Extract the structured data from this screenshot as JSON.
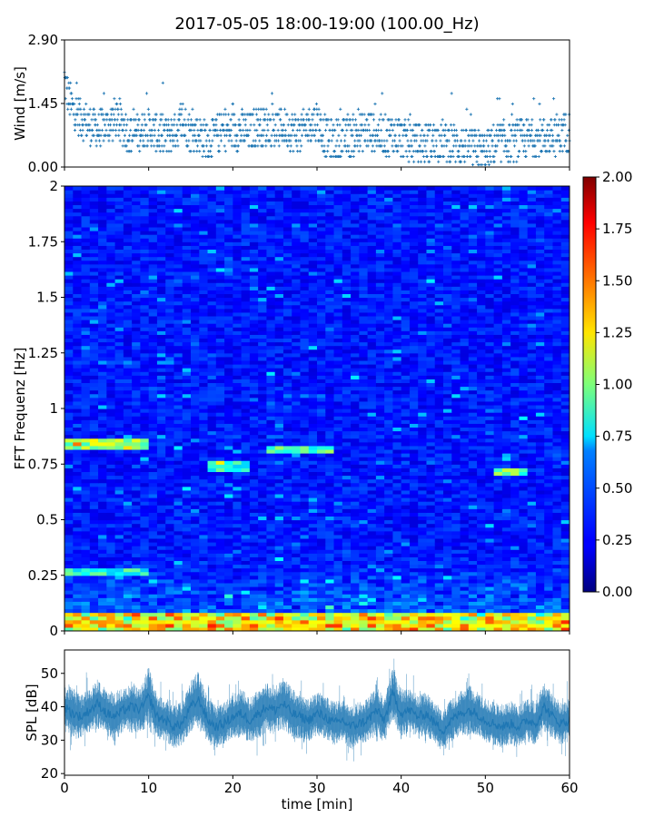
{
  "figure": {
    "title": "2017-05-05 18:00-19:00 (100.00_Hz)"
  },
  "chart_data": [
    {
      "type": "scatter",
      "panel": "wind",
      "ylabel": "Wind [m/s]",
      "xlabel": "",
      "xlim": [
        0,
        60
      ],
      "ylim": [
        0,
        2.9
      ],
      "yticks": [
        "0.00",
        "1.45",
        "2.90"
      ],
      "color": "#1f77b4",
      "marker": "+",
      "trend": {
        "x": [
          0,
          0.5,
          1,
          2,
          3,
          4,
          5,
          6,
          7,
          8,
          9,
          10,
          11,
          12,
          13,
          14,
          15,
          16,
          17,
          18,
          19,
          20,
          21,
          22,
          23,
          24,
          25,
          26,
          27,
          28,
          29,
          30,
          31,
          32,
          33,
          34,
          35,
          36,
          37,
          38,
          39,
          40,
          41,
          42,
          43,
          44,
          45,
          46,
          47,
          48,
          49,
          50,
          51,
          52,
          53,
          54,
          55,
          56,
          57,
          58,
          59,
          60
        ],
        "y": [
          2.0,
          1.6,
          1.3,
          1.1,
          0.95,
          0.85,
          0.95,
          1.1,
          0.9,
          0.75,
          0.85,
          0.9,
          0.75,
          0.7,
          0.8,
          1.0,
          0.8,
          0.75,
          0.6,
          0.75,
          0.85,
          0.8,
          0.85,
          0.8,
          0.95,
          0.9,
          0.85,
          0.9,
          0.85,
          0.75,
          1.0,
          1.05,
          0.7,
          0.6,
          0.65,
          0.7,
          0.75,
          0.85,
          0.8,
          0.7,
          0.75,
          0.65,
          0.6,
          0.55,
          0.55,
          0.6,
          0.6,
          0.55,
          0.5,
          0.45,
          0.4,
          0.35,
          0.5,
          0.6,
          0.55,
          0.6,
          0.65,
          0.65,
          0.7,
          0.7,
          0.75,
          0.8
        ]
      }
    },
    {
      "type": "heatmap",
      "panel": "spectrogram",
      "ylabel": "FFT Frequenz [Hz]",
      "xlabel": "",
      "xlim": [
        0,
        60
      ],
      "ylim": [
        0,
        2
      ],
      "yticks": [
        "0",
        "0.25",
        "0.5",
        "0.75",
        "1",
        "1.25",
        "1.5",
        "1.75",
        "2"
      ],
      "colorbar": {
        "min": 0,
        "max": 2,
        "ticks": [
          "0.00",
          "0.25",
          "0.50",
          "0.75",
          "1.00",
          "1.25",
          "1.50",
          "1.75",
          "2.00"
        ],
        "colormap": "jet"
      },
      "features": [
        {
          "freq": 0.84,
          "t_start": 0,
          "t_end": 10,
          "level": 1.2
        },
        {
          "freq": 0.82,
          "t_start": 24,
          "t_end": 32,
          "level": 1.0
        },
        {
          "freq": 0.74,
          "t_start": 17,
          "t_end": 22,
          "level": 0.9
        },
        {
          "freq": 0.72,
          "t_start": 51,
          "t_end": 55,
          "level": 1.05
        },
        {
          "freq": 0.27,
          "t_start": 0,
          "t_end": 10,
          "level": 0.9
        },
        {
          "freq": 0.03,
          "t_start": 0,
          "t_end": 60,
          "level": 1.2
        }
      ]
    },
    {
      "type": "area",
      "panel": "spl",
      "ylabel": "SPL [dB]",
      "xlabel": "time [min]",
      "xlim": [
        0,
        60
      ],
      "ylim": [
        19.5,
        57
      ],
      "yticks": [
        20,
        30,
        40,
        50
      ],
      "xticks": [
        0,
        10,
        20,
        30,
        40,
        50,
        60
      ],
      "color": "#1f77b4",
      "series": [
        {
          "x": [
            0,
            1,
            2,
            3,
            4,
            5,
            6,
            7,
            8,
            9,
            10,
            11,
            12,
            13,
            14,
            15,
            16,
            17,
            18,
            19,
            20,
            21,
            22,
            23,
            24,
            25,
            26,
            27,
            28,
            29,
            30,
            31,
            32,
            33,
            34,
            35,
            36,
            37,
            38,
            39,
            40,
            41,
            42,
            43,
            44,
            45,
            46,
            47,
            48,
            49,
            50,
            51,
            52,
            53,
            54,
            55,
            56,
            57,
            58,
            59,
            60
          ],
          "y": [
            40,
            38,
            37,
            39,
            41,
            38,
            37,
            39,
            40,
            39,
            43,
            37,
            36,
            34,
            35,
            40,
            42,
            36,
            34,
            35,
            37,
            38,
            36,
            38,
            40,
            39,
            41,
            38,
            37,
            36,
            38,
            37,
            35,
            36,
            34,
            35,
            36,
            39,
            36,
            44,
            38,
            39,
            37,
            38,
            35,
            33,
            36,
            38,
            39,
            38,
            36,
            35,
            34,
            35,
            34,
            36,
            35,
            40,
            37,
            35,
            36
          ],
          "spread": [
            5,
            6,
            5,
            5,
            6,
            5,
            6,
            5,
            6,
            5,
            7,
            5,
            5,
            5,
            5,
            6,
            7,
            5,
            5,
            5,
            5,
            6,
            5,
            6,
            6,
            5,
            6,
            6,
            5,
            5,
            5,
            5,
            5,
            5,
            5,
            5,
            5,
            6,
            5,
            6,
            6,
            5,
            5,
            5,
            5,
            5,
            5,
            5,
            6,
            5,
            5,
            5,
            5,
            5,
            5,
            5,
            5,
            6,
            5,
            5,
            5
          ]
        }
      ]
    }
  ]
}
